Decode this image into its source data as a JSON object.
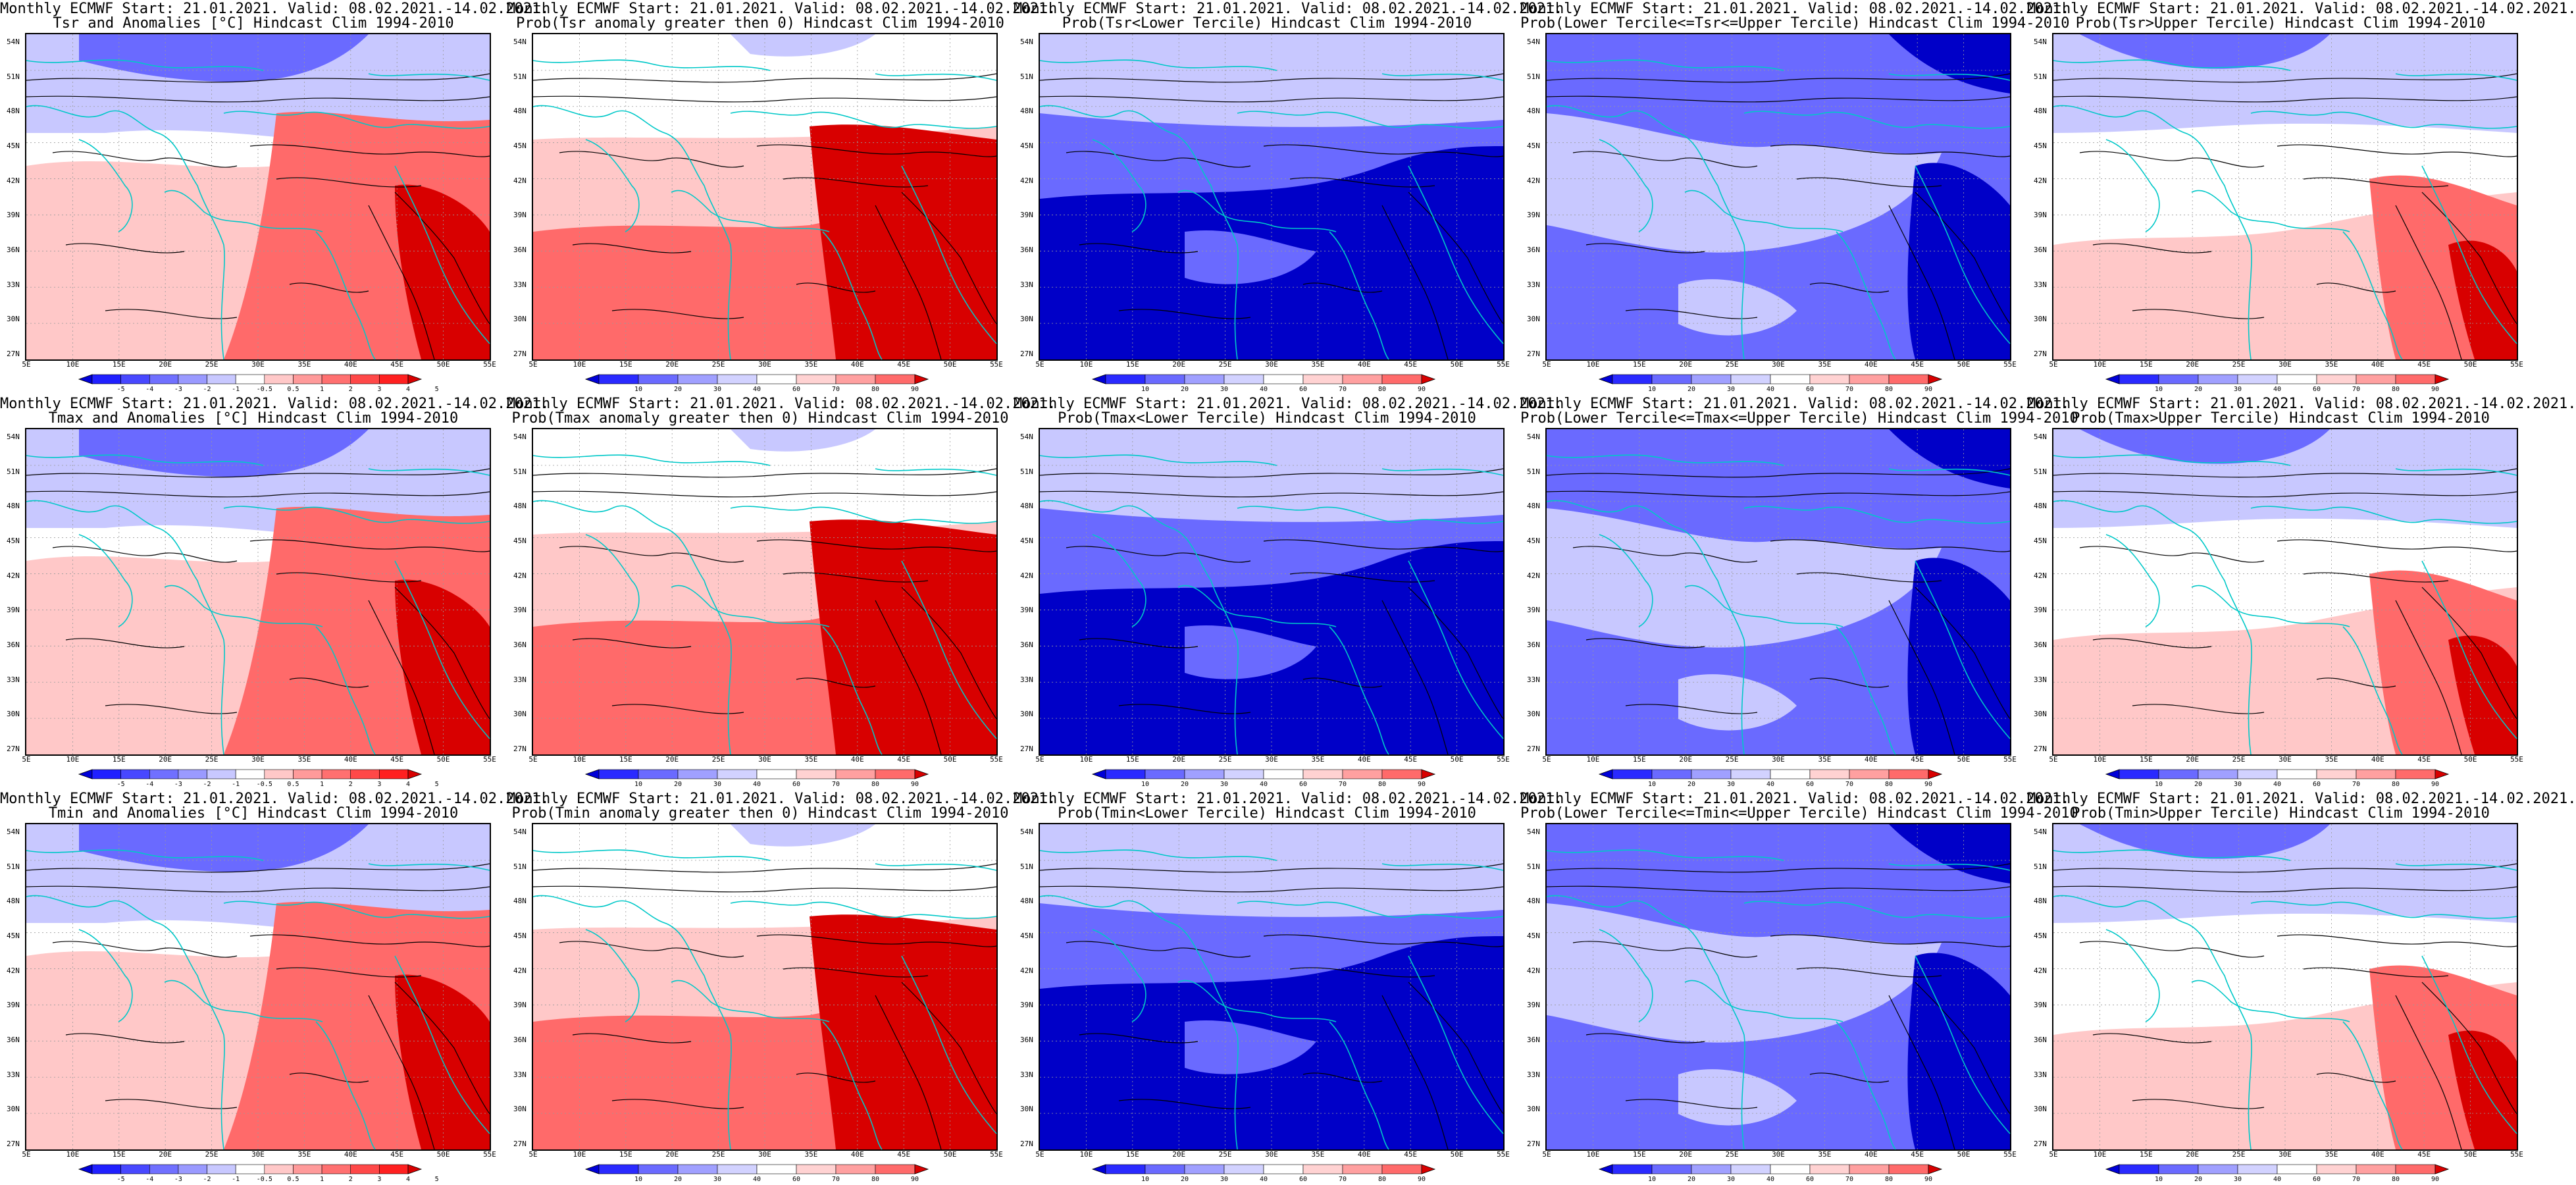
{
  "latitude_labels": [
    "54N",
    "51N",
    "48N",
    "45N",
    "42N",
    "39N",
    "36N",
    "33N",
    "30N",
    "27N"
  ],
  "longitude_labels": [
    "5E",
    "10E",
    "15E",
    "20E",
    "25E",
    "30E",
    "35E",
    "40E",
    "45E",
    "50E",
    "55E"
  ],
  "colorscales": {
    "anomaly": {
      "labels": [
        "-5",
        "-4",
        "-3",
        "-2",
        "-1",
        "-0.5",
        "0.5",
        "1",
        "2",
        "3",
        "4",
        "5"
      ],
      "colors": [
        "#0000d8",
        "#2020ff",
        "#4848ff",
        "#7070ff",
        "#9a9aff",
        "#c8c8ff",
        "#ffffff",
        "#ffc8c8",
        "#ff9a9a",
        "#ff7070",
        "#ff4848",
        "#ff2020",
        "#d80000"
      ]
    },
    "probability": {
      "labels": [
        "10",
        "20",
        "30",
        "40",
        "60",
        "70",
        "80",
        "90"
      ],
      "colors": [
        "#0000d8",
        "#2a2aff",
        "#6a6aff",
        "#a0a0ff",
        "#d2d2ff",
        "#ffffff",
        "#ffd2d2",
        "#ffa0a0",
        "#ff6a6a",
        "#d80000"
      ]
    }
  },
  "map_colors": {
    "coastline": "#00c8c8",
    "contour": "#000000",
    "strong_blue": "#0000c8",
    "mid_blue": "#6a6aff",
    "light_blue": "#c8c8ff",
    "strong_red": "#d80000",
    "mid_red": "#ff6a6a",
    "light_red": "#ffc8c8"
  },
  "panels": [
    {
      "title1": "Monthly ECMWF Start: 21.01.2021. Valid: 08.02.2021.-14.02.2021.",
      "title2": "Tsr and Anomalies [°C] Hindcast Clim 1994-2010",
      "scale": "anomaly",
      "pattern": "anomaly"
    },
    {
      "title1": "Monthly ECMWF Start: 21.01.2021. Valid: 08.02.2021.-14.02.2021.",
      "title2": "Prob(Tsr anomaly greater then 0) Hindcast Clim 1994-2010",
      "scale": "probability",
      "pattern": "greater"
    },
    {
      "title1": "Monthly ECMWF Start: 21.01.2021. Valid: 08.02.2021.-14.02.2021.",
      "title2": "Prob(Tsr<Lower Tercile) Hindcast Clim 1994-2010",
      "scale": "probability",
      "pattern": "lower"
    },
    {
      "title1": "Monthly ECMWF Start: 21.01.2021. Valid: 08.02.2021.-14.02.2021.",
      "title2": "Prob(Lower Tercile<=Tsr<=Upper Tercile) Hindcast Clim 1994-2010",
      "scale": "probability",
      "pattern": "middle"
    },
    {
      "title1": "Monthly ECMWF Start: 21.01.2021. Valid: 08.02.2021.-14.02.2021.",
      "title2": "Prob(Tsr>Upper Tercile) Hindcast Clim 1994-2010",
      "scale": "probability",
      "pattern": "upper"
    },
    {
      "title1": "Monthly ECMWF Start: 21.01.2021. Valid: 08.02.2021.-14.02.2021.",
      "title2": "Tmax and Anomalies [°C] Hindcast Clim 1994-2010",
      "scale": "anomaly",
      "pattern": "anomaly"
    },
    {
      "title1": "Monthly ECMWF Start: 21.01.2021. Valid: 08.02.2021.-14.02.2021.",
      "title2": "Prob(Tmax anomaly greater then 0) Hindcast Clim 1994-2010",
      "scale": "probability",
      "pattern": "greater"
    },
    {
      "title1": "Monthly ECMWF Start: 21.01.2021. Valid: 08.02.2021.-14.02.2021.",
      "title2": "Prob(Tmax<Lower Tercile) Hindcast Clim 1994-2010",
      "scale": "probability",
      "pattern": "lower"
    },
    {
      "title1": "Monthly ECMWF Start: 21.01.2021. Valid: 08.02.2021.-14.02.2021.",
      "title2": "Prob(Lower Tercile<=Tmax<=Upper Tercile) Hindcast Clim 1994-2010",
      "scale": "probability",
      "pattern": "middle"
    },
    {
      "title1": "Monthly ECMWF Start: 21.01.2021. Valid: 08.02.2021.-14.02.2021.",
      "title2": "Prob(Tmax>Upper Tercile) Hindcast Clim 1994-2010",
      "scale": "probability",
      "pattern": "upper"
    },
    {
      "title1": "Monthly ECMWF Start: 21.01.2021. Valid: 08.02.2021.-14.02.2021.",
      "title2": "Tmin and Anomalies [°C] Hindcast Clim 1994-2010",
      "scale": "anomaly",
      "pattern": "anomaly"
    },
    {
      "title1": "Monthly ECMWF Start: 21.01.2021. Valid: 08.02.2021.-14.02.2021.",
      "title2": "Prob(Tmin anomaly greater then 0) Hindcast Clim 1994-2010",
      "scale": "probability",
      "pattern": "greater"
    },
    {
      "title1": "Monthly ECMWF Start: 21.01.2021. Valid: 08.02.2021.-14.02.2021.",
      "title2": "Prob(Tmin<Lower Tercile) Hindcast Clim 1994-2010",
      "scale": "probability",
      "pattern": "lower"
    },
    {
      "title1": "Monthly ECMWF Start: 21.01.2021. Valid: 08.02.2021.-14.02.2021.",
      "title2": "Prob(Lower Tercile<=Tmin<=Upper Tercile) Hindcast Clim 1994-2010",
      "scale": "probability",
      "pattern": "middle"
    },
    {
      "title1": "Monthly ECMWF Start: 21.01.2021. Valid: 08.02.2021.-14.02.2021.",
      "title2": "Prob(Tmin>Upper Tercile) Hindcast Clim 1994-2010",
      "scale": "probability",
      "pattern": "upper"
    }
  ]
}
